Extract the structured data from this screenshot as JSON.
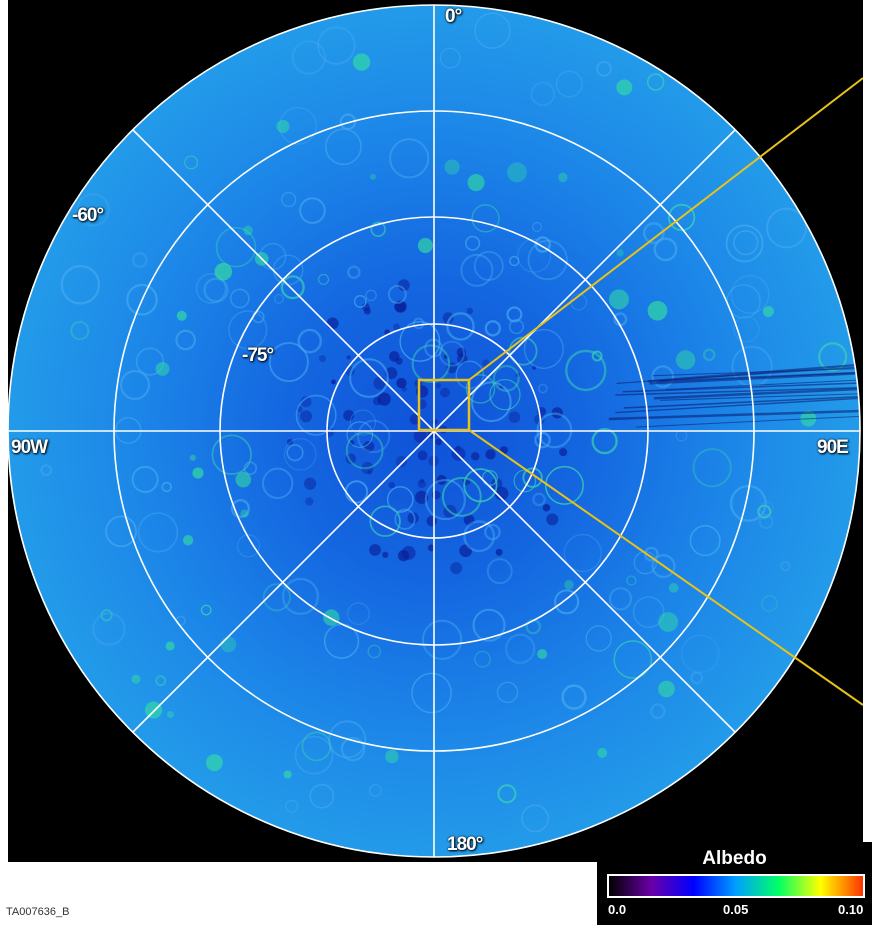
{
  "map": {
    "labels": {
      "top": "0°",
      "bottom": "180°",
      "left": "90W",
      "right": "90E",
      "lat_outer": "-60°",
      "lat_inner": "-75°"
    },
    "colors": {
      "background": "#000000",
      "disc_base": "#1e8fe6",
      "grid": "#ffffff",
      "inset_box": "#e8c21a"
    }
  },
  "legend": {
    "title": "Albedo",
    "ticks": [
      "0.0",
      "0.05",
      "0.10"
    ],
    "color_stops": [
      "#000000",
      "#6a00a8",
      "#0000ff",
      "#00a0ff",
      "#00ff66",
      "#ffff00",
      "#ff3300"
    ]
  },
  "footer": {
    "image_id": "TA007636_B"
  }
}
